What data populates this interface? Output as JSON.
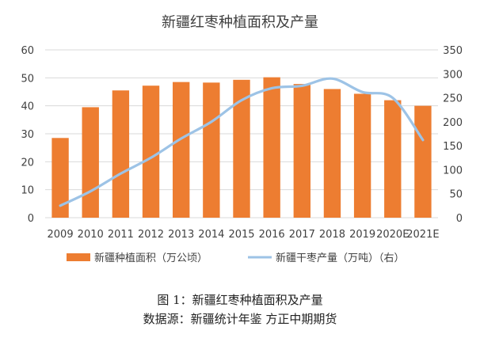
{
  "chart_data": {
    "type": "bar",
    "title": "新疆红枣种植面积及产量",
    "categories": [
      "2009",
      "2010",
      "2011",
      "2012",
      "2013",
      "2014",
      "2015",
      "2016",
      "2017",
      "2018",
      "2019",
      "2020E",
      "2021E"
    ],
    "series": [
      {
        "name": "新疆种植面积（万公顷）",
        "type": "bar",
        "axis": "left",
        "color": "#ED7D31",
        "values": [
          28.5,
          39.5,
          45.5,
          47.2,
          48.5,
          48.3,
          49.3,
          50.2,
          47.8,
          46.0,
          44.3,
          42.0,
          40.0
        ]
      },
      {
        "name": "新疆干枣产量（万吨）（右）",
        "type": "line",
        "axis": "right",
        "color": "#9DC3E6",
        "values": [
          25,
          55,
          92,
          125,
          165,
          200,
          245,
          270,
          275,
          290,
          262,
          250,
          162
        ]
      }
    ],
    "y_left": {
      "min": 0,
      "max": 60,
      "ticks": [
        0,
        10,
        20,
        30,
        40,
        50,
        60
      ]
    },
    "y_right": {
      "min": 0,
      "max": 350,
      "ticks": [
        0,
        50,
        100,
        150,
        200,
        250,
        300,
        350
      ]
    },
    "grid": true,
    "legend_position": "bottom"
  },
  "captions": {
    "figure": "图 1：新疆红枣种植面积及产量",
    "source": "数据源：新疆统计年鉴  方正中期期货"
  }
}
